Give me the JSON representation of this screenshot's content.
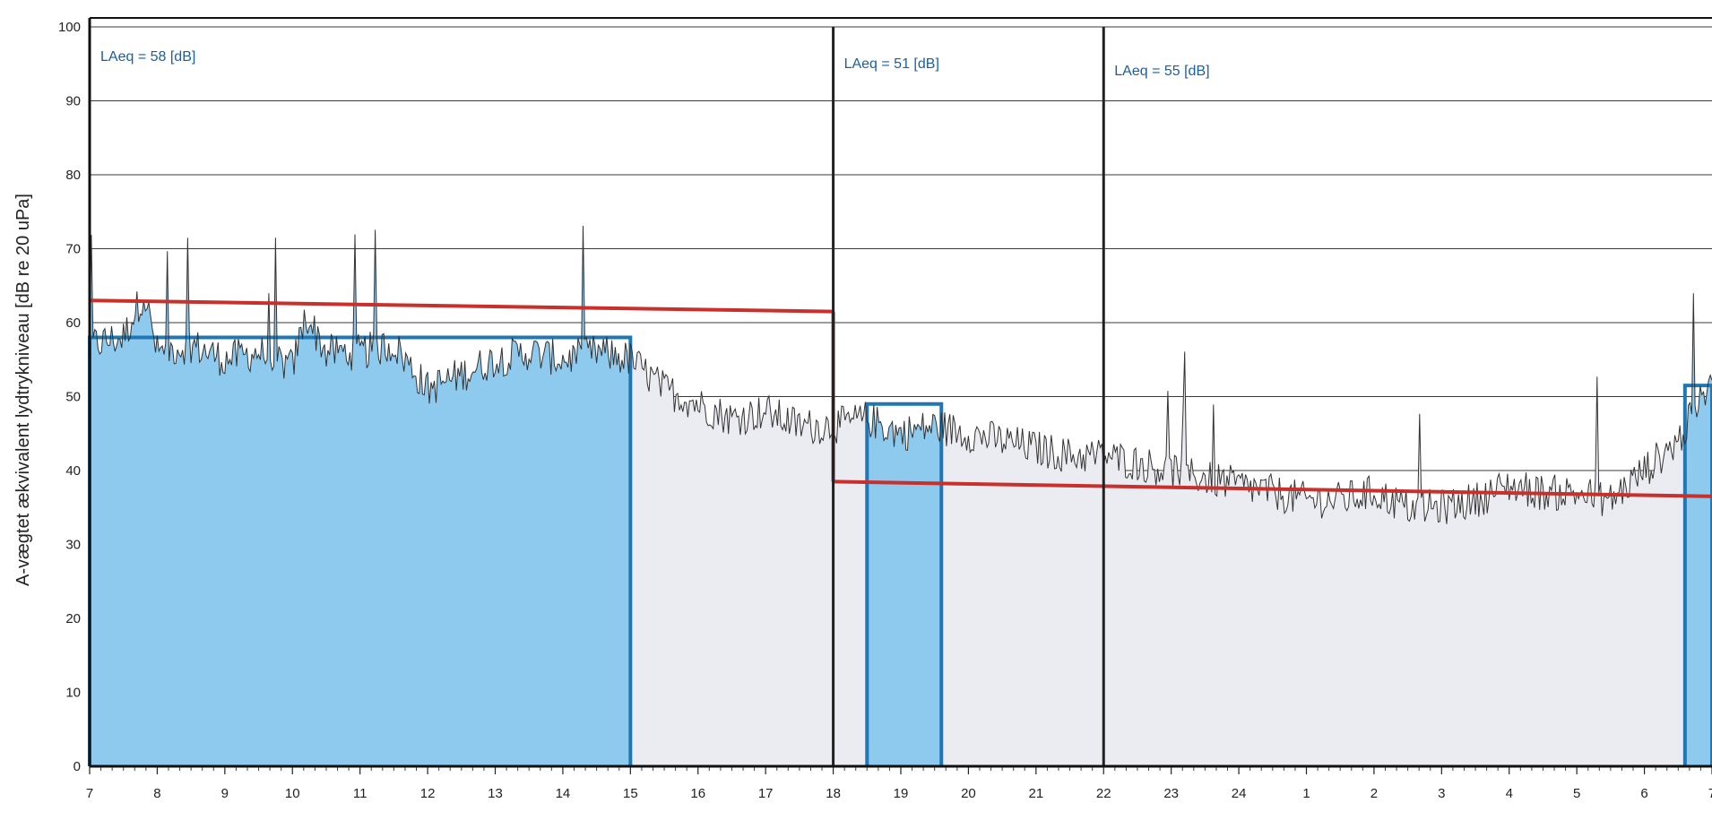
{
  "chart_data": {
    "type": "area",
    "ylabel": "A-vægtet ækvivalent lydtrykniveau [dB re 20 uPa]",
    "xlabel": "",
    "title": "",
    "ylim": [
      0,
      100
    ],
    "yticks": [
      0,
      10,
      20,
      30,
      40,
      50,
      60,
      70,
      80,
      90,
      100
    ],
    "xticks": [
      "7",
      "8",
      "9",
      "10",
      "11",
      "12",
      "13",
      "14",
      "15",
      "16",
      "17",
      "18",
      "19",
      "20",
      "21",
      "22",
      "23",
      "24",
      "1",
      "2",
      "3",
      "4",
      "5",
      "6",
      "7"
    ],
    "grid": true,
    "annotations": [
      {
        "text": "LAeq = 58 [dB]",
        "period": "day"
      },
      {
        "text": "LAeq = 51 [dB]",
        "period": "evening"
      },
      {
        "text": "LAeq = 55 [dB]",
        "period": "night"
      }
    ],
    "period_boundaries": [
      18,
      22
    ],
    "limit_lines": [
      {
        "from": 7,
        "to": 18,
        "y_start": 63,
        "y_end": 61.5,
        "color": "#c8302c"
      },
      {
        "from": 18,
        "to": 31,
        "y_start": 38.5,
        "y_end": 36.5,
        "color": "#c8302c"
      }
    ],
    "highlight_blocks": [
      {
        "from": 7,
        "to": 15,
        "level": 58,
        "color": "#1f77b4"
      },
      {
        "from": 18.5,
        "to": 19.6,
        "level": 49,
        "color": "#1f77b4"
      },
      {
        "from": 30.6,
        "to": 31,
        "level": 51.5,
        "color": "#1f77b4"
      }
    ],
    "series": [
      {
        "name": "",
        "x": [
          7,
          7.5,
          7.8,
          8,
          8.5,
          9,
          9.5,
          10,
          10.2,
          10.5,
          11,
          11.5,
          12,
          12.5,
          13,
          13.5,
          14,
          14.5,
          15,
          15.5,
          16,
          16.5,
          17,
          17.5,
          18,
          18.5,
          19,
          19.5,
          20,
          20.5,
          21,
          21.5,
          22,
          22.5,
          23,
          23.5,
          24,
          24.5,
          25,
          25.5,
          26,
          26.5,
          27,
          27.5,
          28,
          28.5,
          29,
          29.5,
          30,
          30.5,
          31
        ],
        "values": [
          57,
          58,
          64,
          56,
          57,
          55,
          56,
          54,
          61,
          56,
          56,
          57,
          51,
          53,
          55,
          56,
          55,
          56,
          55,
          51,
          49,
          47,
          48,
          46,
          46,
          47,
          45,
          46,
          45,
          44,
          43,
          42,
          42,
          41,
          40,
          39,
          38,
          37,
          36,
          36,
          37,
          35,
          35,
          36,
          38,
          37,
          37,
          36,
          40,
          44,
          52
        ]
      }
    ],
    "colors": {
      "fill_light": "#ebebf2",
      "trace": "#333333",
      "highlight_fill": "#8ec9ee",
      "highlight_stroke": "#1f77b4",
      "limit": "#c8302c",
      "annotation": "#1a5f9e"
    }
  }
}
